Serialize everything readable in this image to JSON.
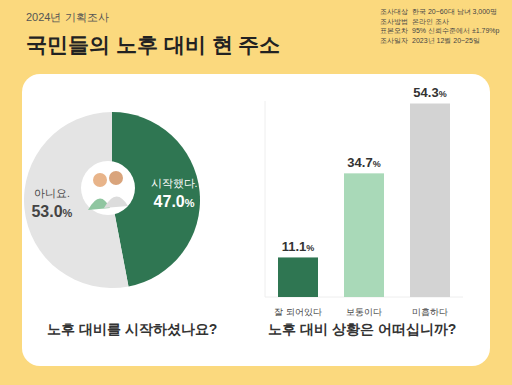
{
  "header": {
    "kicker": "2024년 기획조사",
    "title": "국민들의 노후 대비 현 주소",
    "info": [
      [
        "조사대상",
        "한국 20~60대 남녀 3,000명"
      ],
      [
        "조사방법",
        "온라인 조사"
      ],
      [
        "표본오차",
        "95% 신뢰수준에서 ±1.79%p"
      ],
      [
        "조사일자",
        "2023년 12월 20~25일"
      ]
    ]
  },
  "chart_data": [
    {
      "type": "pie",
      "title": "노후 대비를 시작하셨나요?",
      "categories": [
        "시작했다.",
        "아니요."
      ],
      "values": [
        47.0,
        53.0
      ],
      "value_labels": [
        "47.0%",
        "53.0%"
      ],
      "colors": [
        "#2f7652",
        "#e4e4e4"
      ],
      "data_labels": true
    },
    {
      "type": "bar",
      "title": "노후 대비 상황은 어떠십니까?",
      "categories": [
        "잘 되어있다",
        "보통이다",
        "미흡하다"
      ],
      "values": [
        11.1,
        34.7,
        54.3
      ],
      "value_labels": [
        "11.1%",
        "34.7%",
        "54.3%"
      ],
      "colors": [
        "#2f7652",
        "#a9d9b8",
        "#d3d3d3"
      ],
      "ylim": [
        0,
        55
      ],
      "data_labels": true,
      "tick_labels": "x"
    }
  ]
}
